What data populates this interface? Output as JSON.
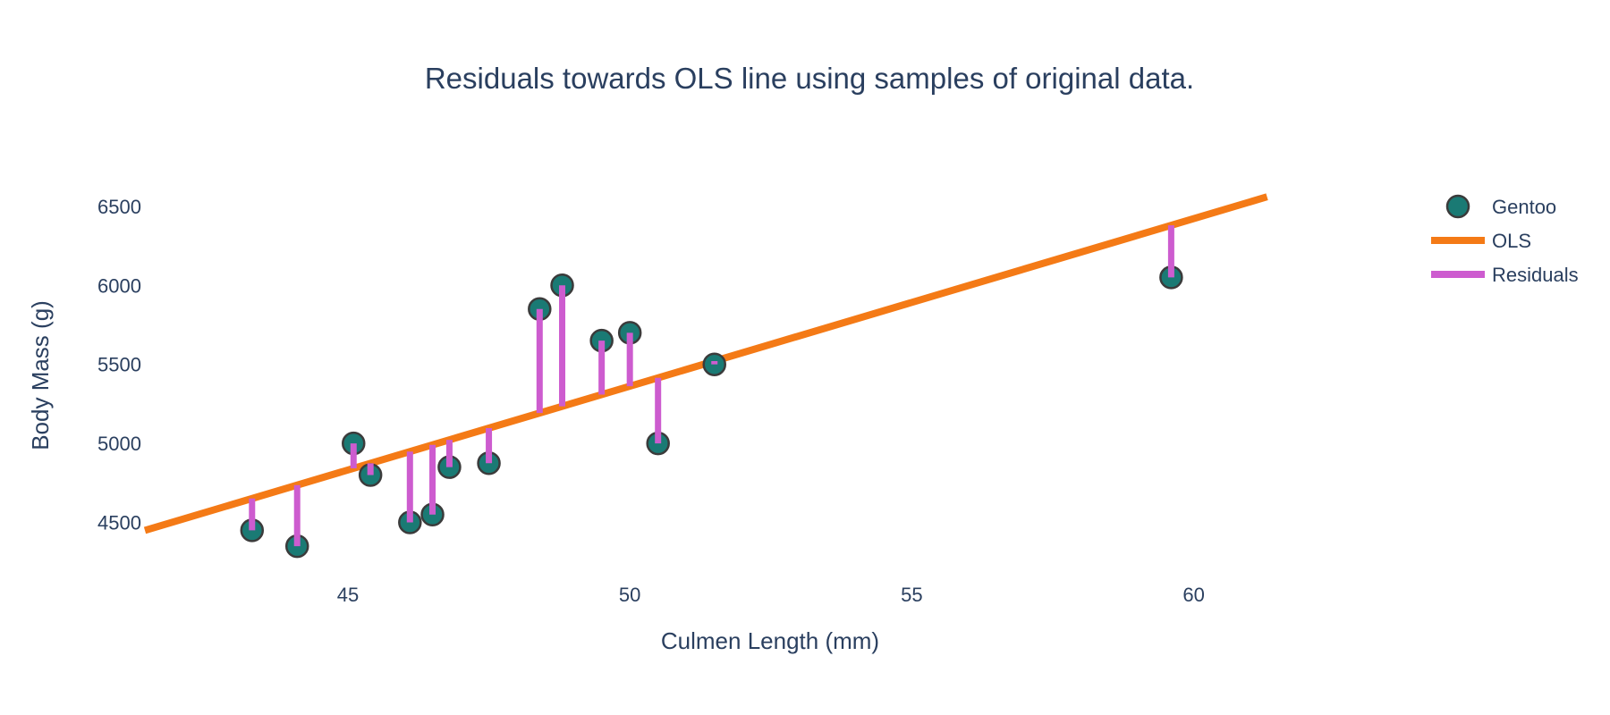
{
  "chart_data": {
    "type": "scatter",
    "title": "Residuals towards OLS line using samples of original data.",
    "xlabel": "Culmen Length (mm)",
    "ylabel": "Body Mass (g)",
    "xlim": [
      41.4,
      64.4
    ],
    "ylim": [
      4130,
      6810
    ],
    "xticks": [
      45,
      50,
      55,
      60
    ],
    "yticks": [
      4500,
      5000,
      5500,
      6000,
      6500
    ],
    "grid": false,
    "legend_position": "top-right",
    "series": [
      {
        "name": "Gentoo",
        "kind": "markers",
        "color": "#1a7a74",
        "edge_color": "#3b3b3b",
        "x": [
          43.3,
          44.1,
          45.1,
          45.4,
          46.1,
          46.5,
          46.8,
          47.5,
          48.4,
          48.8,
          49.5,
          50.0,
          50.5,
          51.5,
          59.6
        ],
        "y": [
          4450,
          4350,
          5000,
          4800,
          4500,
          4550,
          4850,
          4875,
          5850,
          6000,
          5650,
          5700,
          5000,
          5500,
          6050
        ]
      },
      {
        "name": "OLS",
        "kind": "line",
        "color": "#f47a16",
        "x": [
          41.4,
          61.3
        ],
        "y": [
          4450,
          6560
        ]
      },
      {
        "name": "Residuals",
        "kind": "segments",
        "color": "#cd5ccf"
      }
    ]
  }
}
